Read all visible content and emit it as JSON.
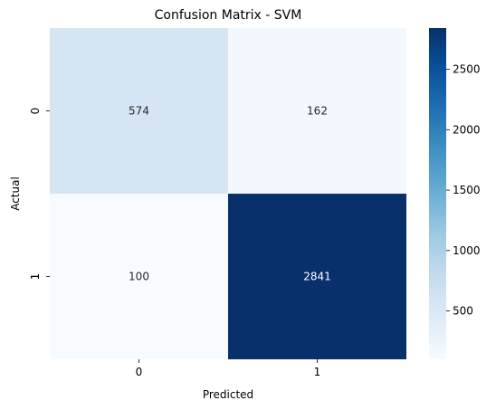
{
  "chart_data": {
    "type": "heatmap",
    "title": "Confusion Matrix - SVM",
    "xlabel": "Predicted",
    "ylabel": "Actual",
    "x_categories": [
      "0",
      "1"
    ],
    "y_categories": [
      "0",
      "1"
    ],
    "values": [
      [
        574,
        162
      ],
      [
        100,
        2841
      ]
    ],
    "annotations": [
      [
        "574",
        "162"
      ],
      [
        "100",
        "2841"
      ]
    ],
    "colormap": "Blues",
    "colorbar": {
      "vmin": 100,
      "vmax": 2841,
      "ticks": [
        500,
        1000,
        1500,
        2000,
        2500
      ],
      "tick_labels": [
        "500",
        "1000",
        "1500",
        "2000",
        "2500"
      ]
    }
  }
}
